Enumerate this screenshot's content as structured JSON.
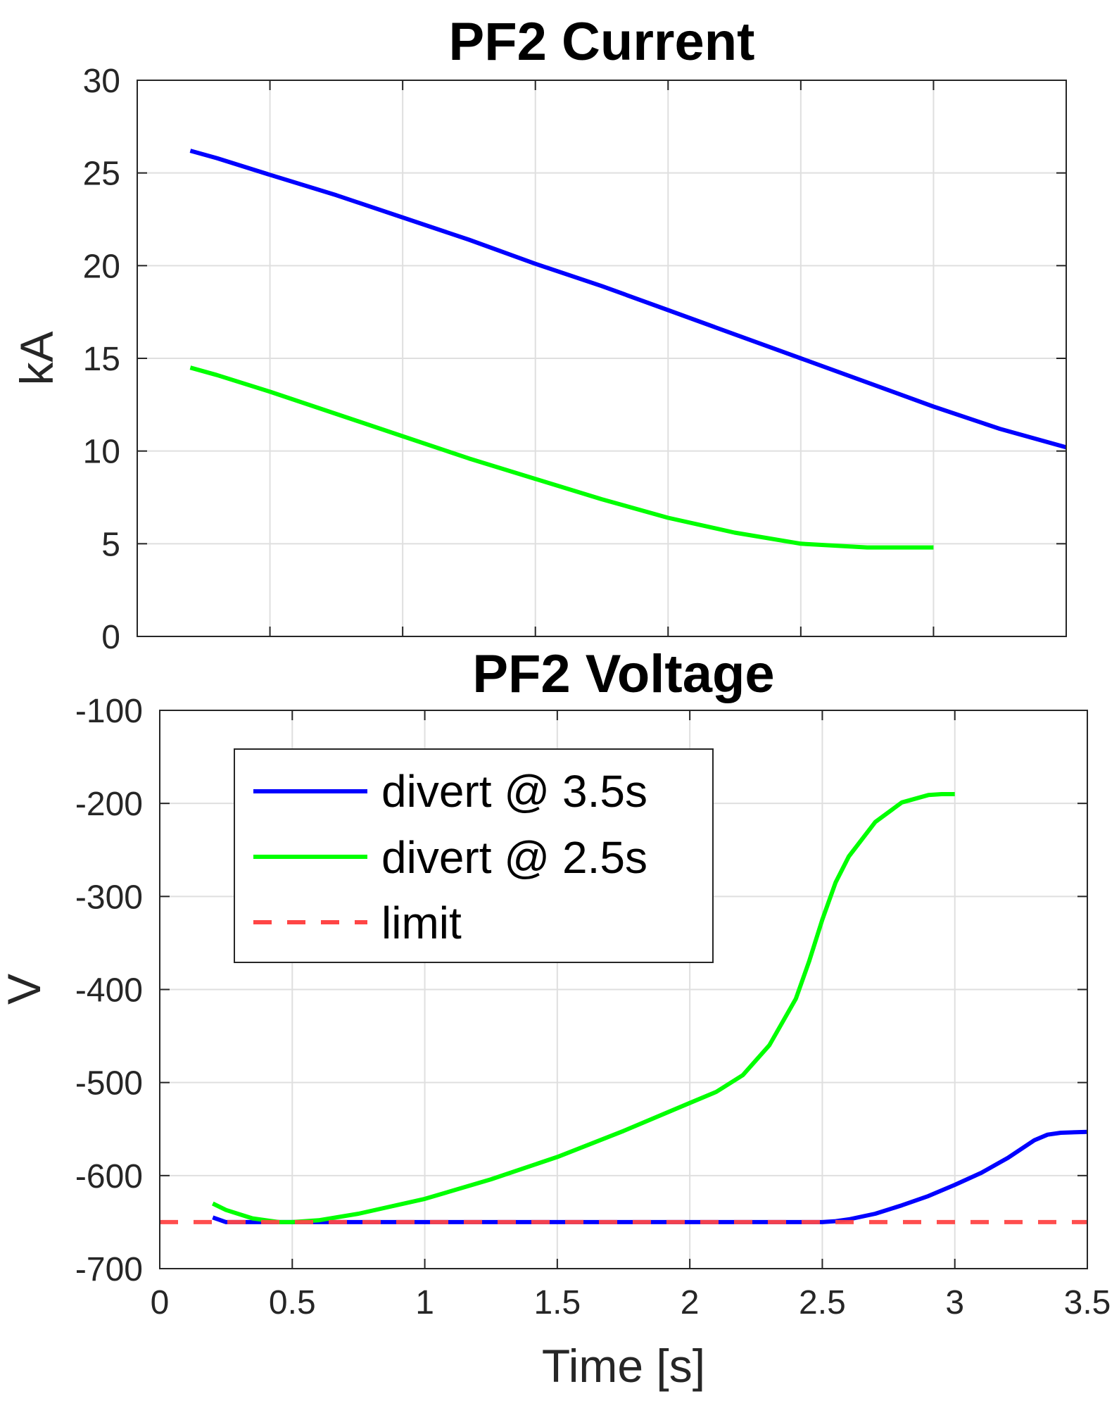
{
  "chart_data": [
    {
      "type": "line",
      "title": "PF2 Current",
      "xlabel": "",
      "ylabel": "kA",
      "xlim": [
        0,
        3.5
      ],
      "ylim": [
        0,
        30
      ],
      "grid": true,
      "yticks": [
        "0",
        "5",
        "10",
        "15",
        "20",
        "25",
        "30"
      ],
      "series": [
        {
          "name": "divert @ 3.5s",
          "color": "#0000ff",
          "dash": false,
          "x": [
            0.2,
            0.3,
            0.5,
            0.75,
            1.0,
            1.25,
            1.5,
            1.75,
            2.0,
            2.25,
            2.5,
            2.75,
            3.0,
            3.25,
            3.5
          ],
          "y": [
            26.2,
            25.8,
            24.9,
            23.8,
            22.6,
            21.4,
            20.1,
            18.9,
            17.6,
            16.3,
            15.0,
            13.7,
            12.4,
            11.2,
            10.2
          ]
        },
        {
          "name": "divert @ 2.5s",
          "color": "#00ff00",
          "dash": false,
          "x": [
            0.2,
            0.3,
            0.5,
            0.75,
            1.0,
            1.25,
            1.5,
            1.75,
            2.0,
            2.25,
            2.5,
            2.75,
            3.0
          ],
          "y": [
            14.5,
            14.1,
            13.2,
            12.0,
            10.8,
            9.6,
            8.5,
            7.4,
            6.4,
            5.6,
            5.0,
            4.8,
            4.8
          ]
        }
      ]
    },
    {
      "type": "line",
      "title": "PF2 Voltage",
      "xlabel": "Time [s]",
      "ylabel": "V",
      "xlim": [
        0,
        3.5
      ],
      "ylim": [
        -700,
        -100
      ],
      "grid": true,
      "xticks": [
        "0",
        "0.5",
        "1",
        "1.5",
        "2",
        "2.5",
        "3",
        "3.5"
      ],
      "yticks": [
        "-700",
        "-600",
        "-500",
        "-400",
        "-300",
        "-200",
        "-100"
      ],
      "legend_position": "top-left",
      "series": [
        {
          "name": "divert @ 3.5s",
          "color": "#0000ff",
          "dash": false,
          "x": [
            0.2,
            0.25,
            0.35,
            0.5,
            1.0,
            1.5,
            2.0,
            2.5,
            2.55,
            2.6,
            2.7,
            2.8,
            2.9,
            3.0,
            3.1,
            3.2,
            3.3,
            3.35,
            3.4,
            3.5
          ],
          "y": [
            -645,
            -650,
            -650,
            -650,
            -650,
            -650,
            -650,
            -650,
            -649,
            -647,
            -641,
            -632,
            -622,
            -610,
            -597,
            -581,
            -562,
            -556,
            -554,
            -553
          ]
        },
        {
          "name": "divert @ 2.5s",
          "color": "#00ff00",
          "dash": false,
          "x": [
            0.2,
            0.25,
            0.35,
            0.45,
            0.5,
            0.6,
            0.75,
            1.0,
            1.25,
            1.5,
            1.75,
            2.0,
            2.1,
            2.2,
            2.3,
            2.4,
            2.45,
            2.5,
            2.55,
            2.6,
            2.7,
            2.8,
            2.9,
            2.95,
            3.0
          ],
          "y": [
            -630,
            -637,
            -646,
            -650,
            -650,
            -648,
            -641,
            -625,
            -604,
            -580,
            -552,
            -522,
            -510,
            -492,
            -460,
            -410,
            -370,
            -325,
            -285,
            -257,
            -220,
            -199,
            -191,
            -190,
            -190
          ]
        },
        {
          "name": "limit",
          "color": "#ff4545",
          "dash": true,
          "x": [
            0,
            3.5
          ],
          "y": [
            -650,
            -650
          ]
        }
      ]
    }
  ]
}
